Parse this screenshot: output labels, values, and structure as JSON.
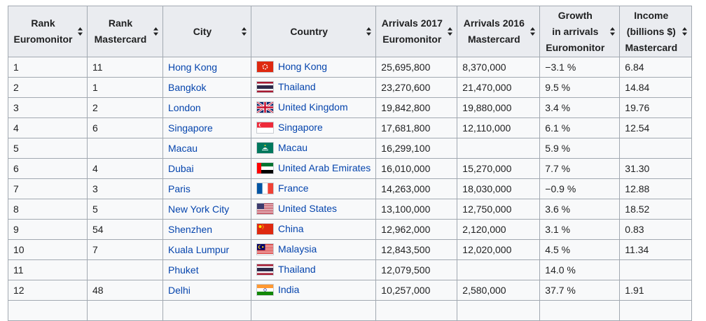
{
  "columns": [
    "Rank\nEuromonitor",
    "Rank\nMastercard",
    "City",
    "Country",
    "Arrivals 2017\nEuromonitor",
    "Arrivals 2016\nMastercard",
    "Growth\nin arrivals\nEuromonitor",
    "Income\n(billions $)\nMastercard"
  ],
  "rows": [
    {
      "rank_euro": "1",
      "rank_mc": "11",
      "city": "Hong Kong",
      "country": "Hong Kong",
      "flag": "hk-flag-icon",
      "arr2017": "25,695,800",
      "arr2016": "8,370,000",
      "growth": "−3.1 %",
      "income": "6.84"
    },
    {
      "rank_euro": "2",
      "rank_mc": "1",
      "city": "Bangkok",
      "country": "Thailand",
      "flag": "th-flag-icon",
      "arr2017": "23,270,600",
      "arr2016": "21,470,000",
      "growth": "9.5 %",
      "income": "14.84"
    },
    {
      "rank_euro": "3",
      "rank_mc": "2",
      "city": "London",
      "country": "United Kingdom",
      "flag": "uk-flag-icon",
      "arr2017": "19,842,800",
      "arr2016": "19,880,000",
      "growth": "3.4 %",
      "income": "19.76"
    },
    {
      "rank_euro": "4",
      "rank_mc": "6",
      "city": "Singapore",
      "country": "Singapore",
      "flag": "sg-flag-icon",
      "arr2017": "17,681,800",
      "arr2016": "12,110,000",
      "growth": "6.1 %",
      "income": "12.54"
    },
    {
      "rank_euro": "5",
      "rank_mc": "",
      "city": "Macau",
      "country": "Macau",
      "flag": "mo-flag-icon",
      "arr2017": "16,299,100",
      "arr2016": "",
      "growth": "5.9 %",
      "income": ""
    },
    {
      "rank_euro": "6",
      "rank_mc": "4",
      "city": "Dubai",
      "country": "United Arab Emirates",
      "flag": "ae-flag-icon",
      "arr2017": "16,010,000",
      "arr2016": "15,270,000",
      "growth": "7.7 %",
      "income": "31.30"
    },
    {
      "rank_euro": "7",
      "rank_mc": "3",
      "city": "Paris",
      "country": "France",
      "flag": "fr-flag-icon",
      "arr2017": "14,263,000",
      "arr2016": "18,030,000",
      "growth": "−0.9 %",
      "income": "12.88"
    },
    {
      "rank_euro": "8",
      "rank_mc": "5",
      "city": "New York City",
      "country": "United States",
      "flag": "us-flag-icon",
      "arr2017": "13,100,000",
      "arr2016": "12,750,000",
      "growth": "3.6 %",
      "income": "18.52"
    },
    {
      "rank_euro": "9",
      "rank_mc": "54",
      "city": "Shenzhen",
      "country": "China",
      "flag": "cn-flag-icon",
      "arr2017": "12,962,000",
      "arr2016": "2,120,000",
      "growth": "3.1 %",
      "income": "0.83"
    },
    {
      "rank_euro": "10",
      "rank_mc": "7",
      "city": "Kuala Lumpur",
      "country": "Malaysia",
      "flag": "my-flag-icon",
      "arr2017": "12,843,500",
      "arr2016": "12,020,000",
      "growth": "4.5 %",
      "income": "11.34"
    },
    {
      "rank_euro": "11",
      "rank_mc": "",
      "city": "Phuket",
      "country": "Thailand",
      "flag": "th-flag-icon",
      "arr2017": "12,079,500",
      "arr2016": "",
      "growth": "14.0 %",
      "income": ""
    },
    {
      "rank_euro": "12",
      "rank_mc": "48",
      "city": "Delhi",
      "country": "India",
      "flag": "in-flag-icon",
      "arr2017": "10,257,000",
      "arr2016": "2,580,000",
      "growth": "37.7 %",
      "income": "1.91"
    },
    {
      "rank_euro": "",
      "rank_mc": "",
      "city": "",
      "country": "",
      "flag": "",
      "arr2017": "",
      "arr2016": "",
      "growth": "",
      "income": ""
    }
  ],
  "colors": {
    "link": "#0645ad",
    "header_bg": "#eaecf0",
    "cell_bg": "#f8f9fa",
    "border": "#a2a9b1"
  }
}
